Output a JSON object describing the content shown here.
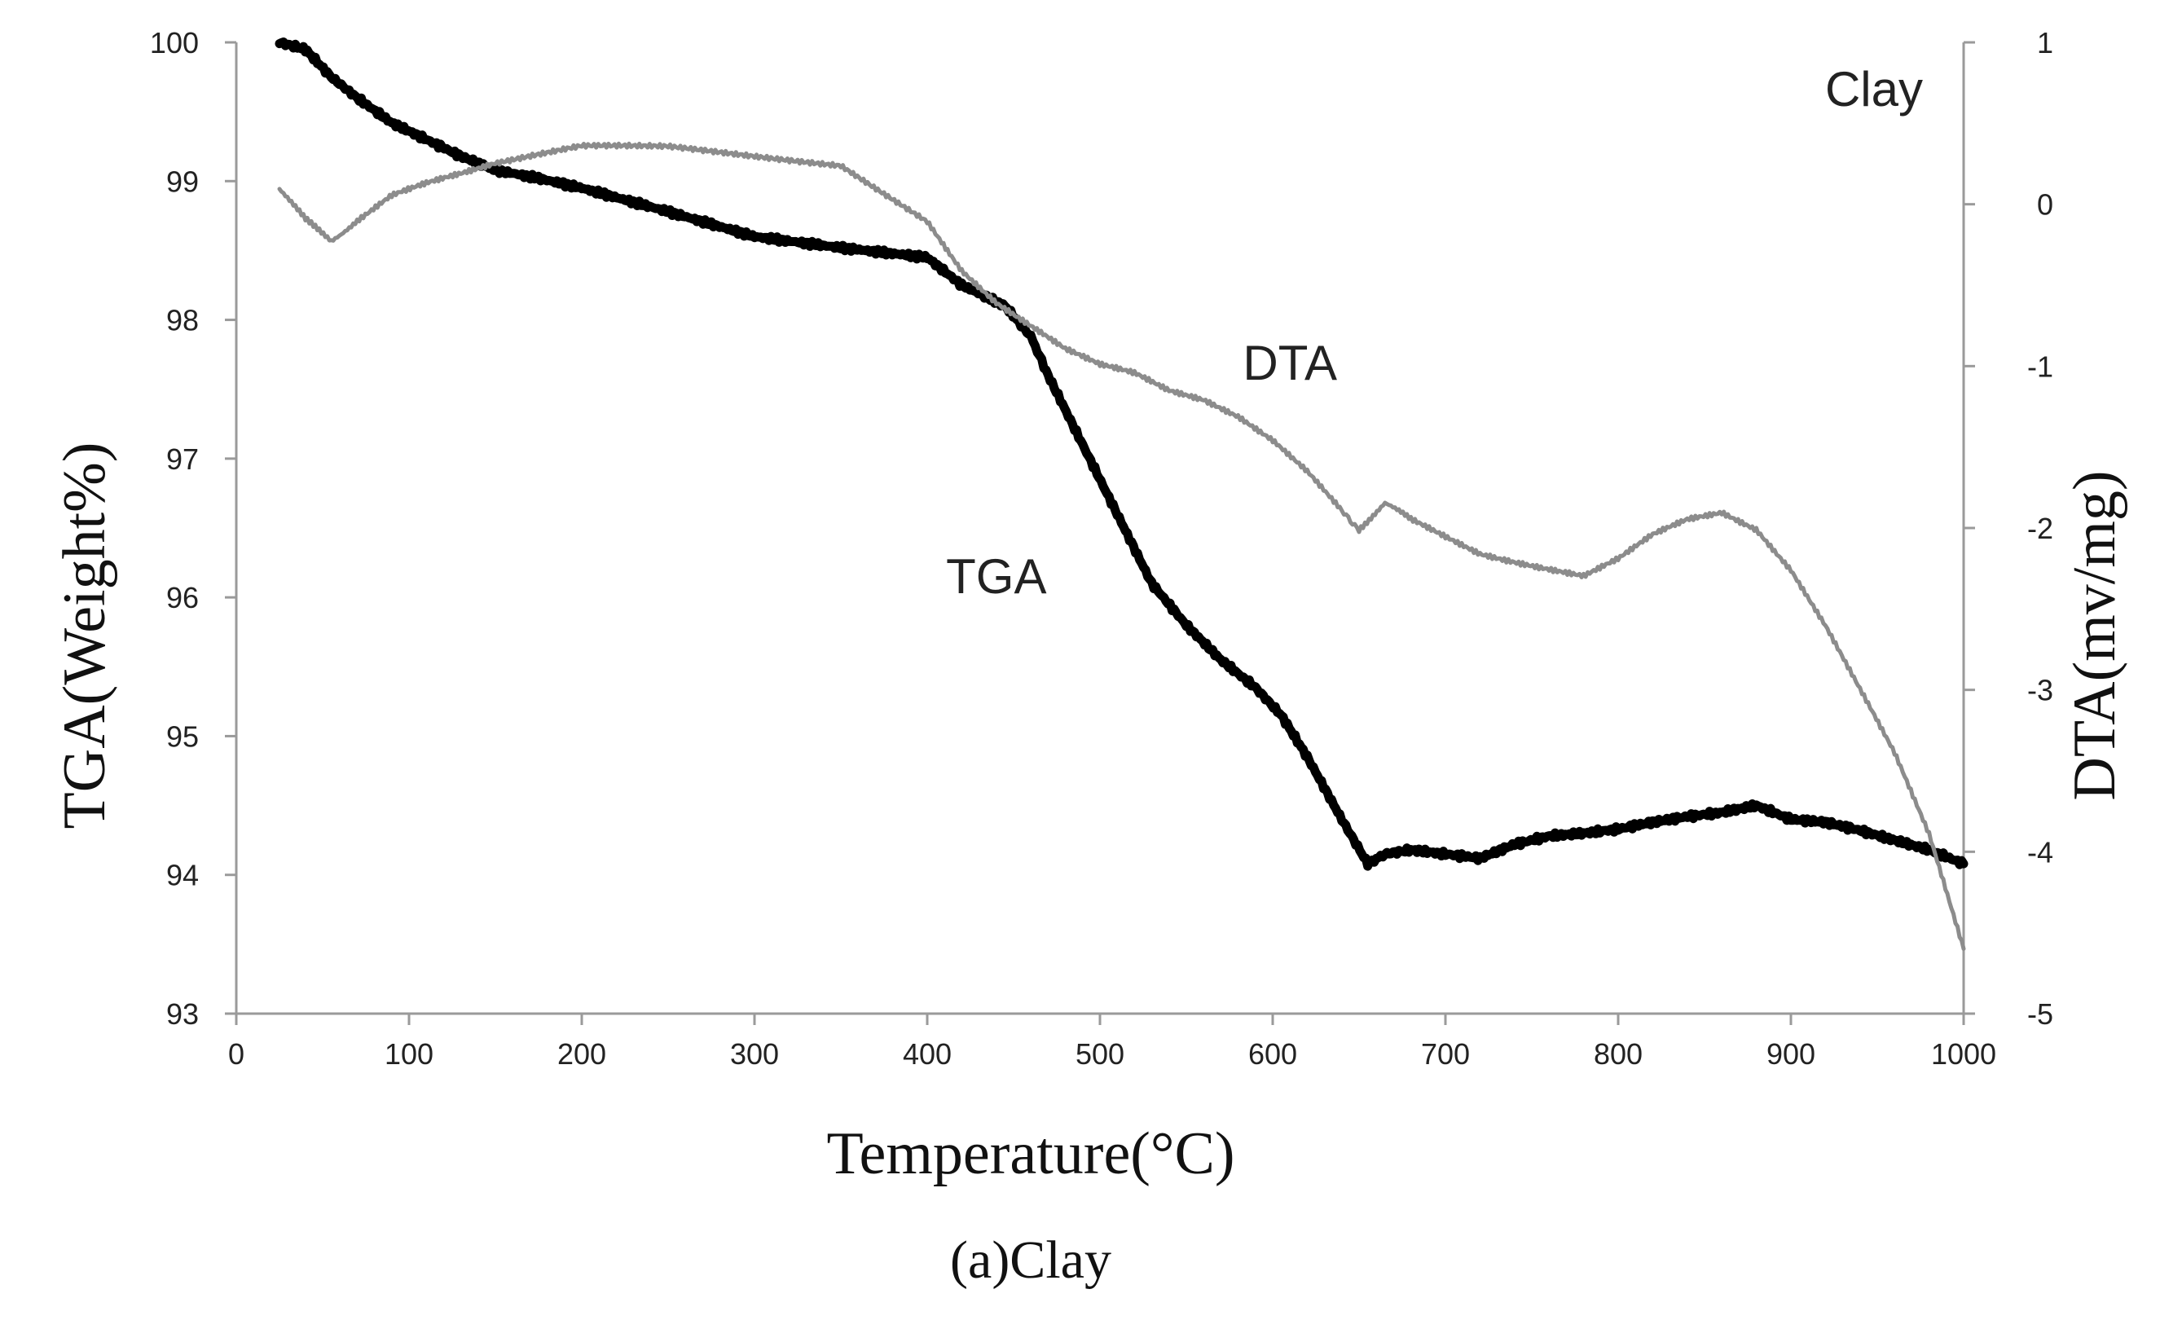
{
  "chart_data": {
    "type": "line",
    "title": "Clay",
    "caption": "(a)Clay",
    "xlabel": "Temperature(°C)",
    "ylabel": "TGA(Weight%)",
    "y2label": "DTA(mv/mg)",
    "xlim": [
      0,
      1000
    ],
    "ylim": [
      93,
      100
    ],
    "y2lim": [
      -5,
      1
    ],
    "x_ticks": [
      0,
      100,
      200,
      300,
      400,
      500,
      600,
      700,
      800,
      900,
      1000
    ],
    "y_ticks": [
      93,
      94,
      95,
      96,
      97,
      98,
      99,
      100
    ],
    "y2_ticks": [
      -5,
      -4,
      -3,
      -2,
      -1,
      0,
      1
    ],
    "grid": false,
    "series": [
      {
        "name": "TGA",
        "axis": "left",
        "color": "#000000",
        "x": [
          25,
          40,
          55,
          70,
          90,
          110,
          130,
          150,
          175,
          200,
          250,
          300,
          350,
          400,
          420,
          445,
          460,
          470,
          490,
          510,
          530,
          550,
          570,
          590,
          605,
          620,
          640,
          655,
          665,
          680,
          700,
          720,
          740,
          760,
          780,
          800,
          820,
          840,
          860,
          880,
          900,
          920,
          940,
          960,
          980,
          1000
        ],
        "values": [
          100.0,
          99.95,
          99.75,
          99.6,
          99.42,
          99.3,
          99.18,
          99.08,
          99.02,
          98.95,
          98.78,
          98.6,
          98.52,
          98.45,
          98.25,
          98.1,
          97.88,
          97.6,
          97.1,
          96.6,
          96.1,
          95.8,
          95.55,
          95.35,
          95.15,
          94.85,
          94.4,
          94.08,
          94.15,
          94.18,
          94.15,
          94.12,
          94.22,
          94.28,
          94.3,
          94.33,
          94.38,
          94.42,
          94.45,
          94.5,
          94.4,
          94.38,
          94.32,
          94.25,
          94.18,
          94.08
        ]
      },
      {
        "name": "DTA",
        "axis": "right",
        "color": "#8c8c8c",
        "x": [
          25,
          40,
          55,
          70,
          90,
          110,
          130,
          150,
          175,
          200,
          250,
          300,
          350,
          400,
          420,
          440,
          460,
          480,
          500,
          520,
          540,
          560,
          580,
          600,
          620,
          640,
          650,
          665,
          680,
          700,
          720,
          740,
          760,
          780,
          800,
          820,
          840,
          860,
          880,
          900,
          920,
          940,
          960,
          980,
          1000
        ],
        "values": [
          0.1,
          -0.1,
          -0.22,
          -0.1,
          0.05,
          0.12,
          0.18,
          0.25,
          0.3,
          0.35,
          0.35,
          0.3,
          0.25,
          -0.1,
          -0.4,
          -0.6,
          -0.75,
          -0.9,
          -1.0,
          -1.05,
          -1.15,
          -1.2,
          -1.3,
          -1.45,
          -1.65,
          -1.9,
          -2.0,
          -1.85,
          -1.95,
          -2.05,
          -2.15,
          -2.2,
          -2.25,
          -2.3,
          -2.2,
          -2.05,
          -1.95,
          -1.9,
          -2.0,
          -2.25,
          -2.6,
          -3.0,
          -3.4,
          -3.9,
          -4.6
        ]
      }
    ],
    "annotations": [
      {
        "text": "DTA",
        "x": 610,
        "y": 97.57,
        "axis": "left"
      },
      {
        "text": "TGA",
        "x": 440,
        "y": 96.03,
        "axis": "left"
      }
    ]
  },
  "colors": {
    "axis": "#9a9a9a",
    "tga": "#000000",
    "dta": "#8c8c8c",
    "text": "#222222"
  }
}
